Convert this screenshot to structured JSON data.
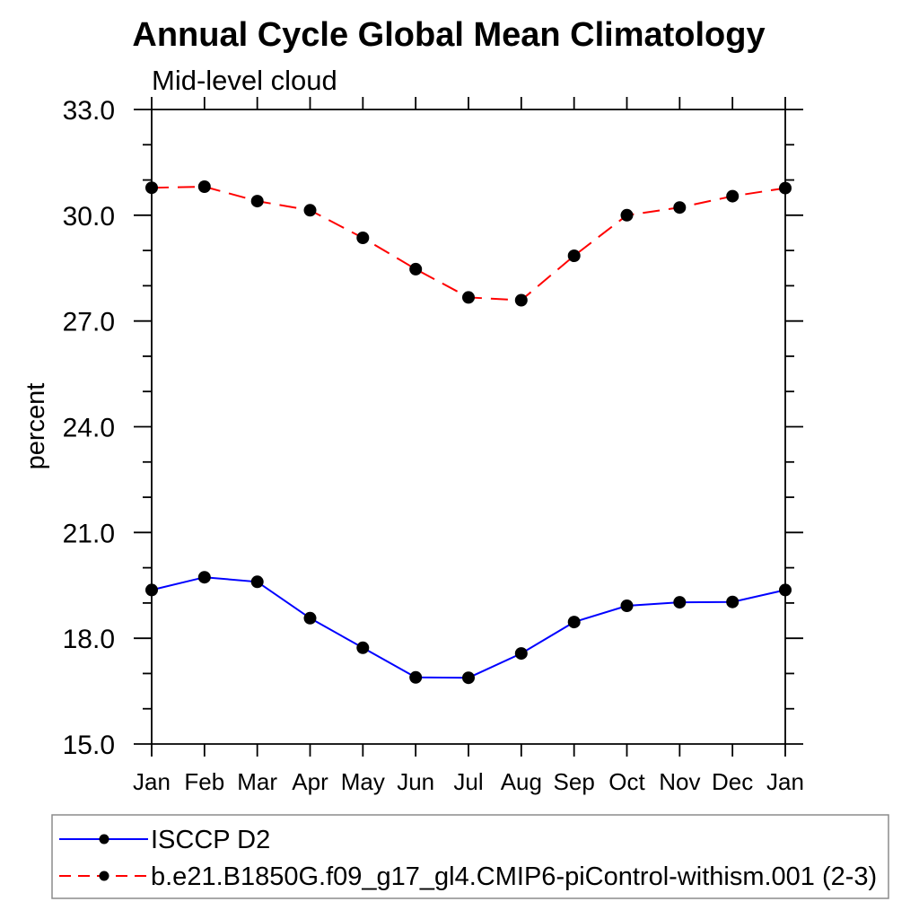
{
  "page": {
    "background": "#ffffff"
  },
  "chart_data": {
    "type": "line",
    "title": "Annual Cycle Global Mean Climatology",
    "subtitle": "Mid-level cloud",
    "xlabel": "",
    "ylabel": "percent",
    "categories": [
      "Jan",
      "Feb",
      "Mar",
      "Apr",
      "May",
      "Jun",
      "Jul",
      "Aug",
      "Sep",
      "Oct",
      "Nov",
      "Dec",
      "Jan"
    ],
    "ylim": [
      15.0,
      33.0
    ],
    "y_major_ticks": [
      15.0,
      18.0,
      21.0,
      24.0,
      27.0,
      30.0,
      33.0
    ],
    "y_minor_step": 1.0,
    "y_tick_label_format": "one_decimal",
    "grid": false,
    "legend_position": "bottom-left",
    "marker": {
      "shape": "circle",
      "color": "#000000"
    },
    "axis_color": "#000000",
    "legend_border_color": "#8c8c8c",
    "series": [
      {
        "name": "ISCCP D2",
        "color": "#0000ff",
        "line_style": "solid",
        "values": [
          19.37,
          19.73,
          19.6,
          18.57,
          17.73,
          16.89,
          16.88,
          17.57,
          18.46,
          18.92,
          19.02,
          19.03,
          19.37
        ]
      },
      {
        "name": "b.e21.B1850G.f09_g17_gl4.CMIP6-piControl-withism.001 (2-3)",
        "color": "#ff0000",
        "line_style": "dashed",
        "values": [
          30.78,
          30.81,
          30.4,
          30.14,
          29.36,
          28.47,
          27.67,
          27.59,
          28.85,
          30.0,
          30.22,
          30.54,
          30.77
        ]
      }
    ]
  }
}
